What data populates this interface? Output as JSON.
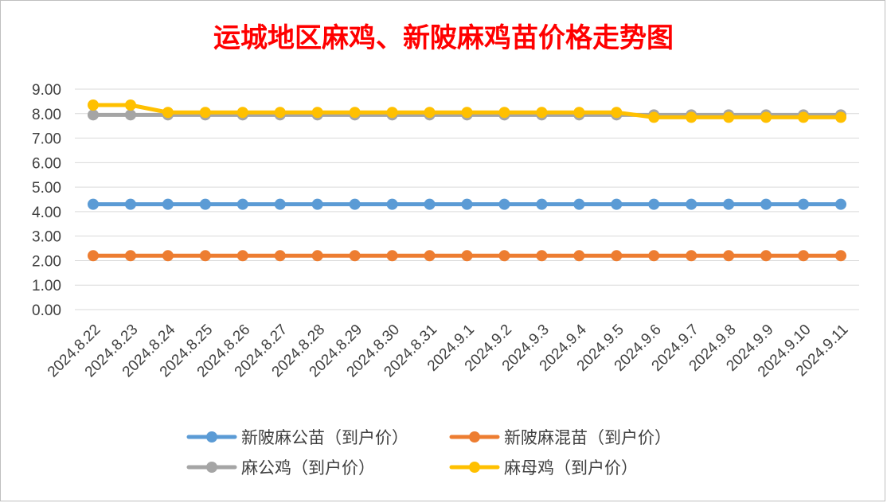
{
  "chart_data": {
    "type": "line",
    "title": "运城地区麻鸡、新陂麻鸡苗价格走势图",
    "title_color": "#ff0000",
    "xlabel": "",
    "ylabel": "",
    "ylim": [
      0,
      9
    ],
    "y_ticks": [
      "0.00",
      "1.00",
      "2.00",
      "3.00",
      "4.00",
      "5.00",
      "6.00",
      "7.00",
      "8.00",
      "9.00"
    ],
    "grid": true,
    "legend_position": "bottom",
    "categories": [
      "2024.8.22",
      "2024.8.23",
      "2024.8.24",
      "2024.8.25",
      "2024.8.26",
      "2024.8.27",
      "2024.8.28",
      "2024.8.29",
      "2024.8.30",
      "2024.8.31",
      "2024.9.1",
      "2024.9.2",
      "2024.9.3",
      "2024.9.4",
      "2024.9.5",
      "2024.9.6",
      "2024.9.7",
      "2024.9.8",
      "2024.9.9",
      "2024.9.10",
      "2024.9.11"
    ],
    "series": [
      {
        "name": "新陂麻公苗（到户价）",
        "color": "#5b9bd5",
        "values": [
          4.3,
          4.3,
          4.3,
          4.3,
          4.3,
          4.3,
          4.3,
          4.3,
          4.3,
          4.3,
          4.3,
          4.3,
          4.3,
          4.3,
          4.3,
          4.3,
          4.3,
          4.3,
          4.3,
          4.3,
          4.3
        ]
      },
      {
        "name": "新陂麻混苗（到户价）",
        "color": "#ed7d31",
        "values": [
          2.2,
          2.2,
          2.2,
          2.2,
          2.2,
          2.2,
          2.2,
          2.2,
          2.2,
          2.2,
          2.2,
          2.2,
          2.2,
          2.2,
          2.2,
          2.2,
          2.2,
          2.2,
          2.2,
          2.2,
          2.2
        ]
      },
      {
        "name": "麻公鸡（到户价）",
        "color": "#a5a5a5",
        "values": [
          7.95,
          7.95,
          7.95,
          7.95,
          7.95,
          7.95,
          7.95,
          7.95,
          7.95,
          7.95,
          7.95,
          7.95,
          7.95,
          7.95,
          7.95,
          7.95,
          7.95,
          7.95,
          7.95,
          7.95,
          7.95
        ]
      },
      {
        "name": "麻母鸡（到户价）",
        "color": "#ffc000",
        "values": [
          8.35,
          8.35,
          8.05,
          8.05,
          8.05,
          8.05,
          8.05,
          8.05,
          8.05,
          8.05,
          8.05,
          8.05,
          8.05,
          8.05,
          8.05,
          7.85,
          7.85,
          7.85,
          7.85,
          7.85,
          7.85
        ]
      }
    ]
  }
}
